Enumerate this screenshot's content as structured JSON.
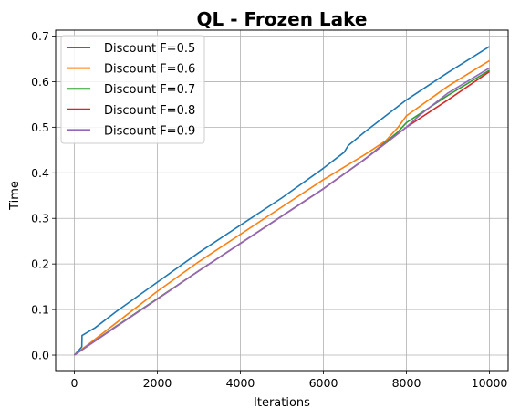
{
  "chart_data": {
    "type": "line",
    "title": "QL - Frozen Lake",
    "xlabel": "Iterations",
    "ylabel": "Time",
    "xlim": [
      -450,
      10450
    ],
    "ylim": [
      -0.034,
      0.713
    ],
    "xticks": [
      0,
      2000,
      4000,
      6000,
      8000,
      10000
    ],
    "yticks": [
      0.0,
      0.1,
      0.2,
      0.3,
      0.4,
      0.5,
      0.6,
      0.7
    ],
    "grid": true,
    "legend_position": "top-left",
    "series": [
      {
        "name": "Discount F=0.5",
        "color": "#1f77b4",
        "x": [
          0,
          180,
          185,
          500,
          1000,
          2000,
          3000,
          4000,
          5000,
          6000,
          6500,
          6600,
          7000,
          8000,
          9000,
          10000
        ],
        "y": [
          0.0,
          0.018,
          0.043,
          0.06,
          0.095,
          0.16,
          0.225,
          0.285,
          0.345,
          0.41,
          0.445,
          0.46,
          0.49,
          0.56,
          0.62,
          0.677
        ]
      },
      {
        "name": "Discount F=0.6",
        "color": "#ff7f0e",
        "x": [
          0,
          1000,
          2000,
          3000,
          4000,
          5000,
          6000,
          7000,
          7500,
          7800,
          8000,
          9000,
          10000
        ],
        "y": [
          0.0,
          0.07,
          0.14,
          0.205,
          0.265,
          0.325,
          0.385,
          0.44,
          0.47,
          0.5,
          0.525,
          0.59,
          0.646
        ]
      },
      {
        "name": "Discount F=0.7",
        "color": "#2ca02c",
        "x": [
          0,
          1000,
          2000,
          3000,
          4000,
          5000,
          6000,
          7000,
          7800,
          8000,
          9000,
          10000
        ],
        "y": [
          0.0,
          0.063,
          0.124,
          0.185,
          0.245,
          0.305,
          0.365,
          0.43,
          0.49,
          0.51,
          0.57,
          0.625
        ]
      },
      {
        "name": "Discount F=0.8",
        "color": "#d62728",
        "x": [
          0,
          1000,
          2000,
          3000,
          4000,
          5000,
          6000,
          7000,
          8000,
          9000,
          10000
        ],
        "y": [
          0.0,
          0.062,
          0.123,
          0.185,
          0.245,
          0.305,
          0.365,
          0.43,
          0.5,
          0.56,
          0.622
        ]
      },
      {
        "name": "Discount F=0.9",
        "color": "#9467bd",
        "x": [
          0,
          1000,
          2000,
          3000,
          4000,
          5000,
          6000,
          7000,
          8000,
          8300,
          9000,
          10000
        ],
        "y": [
          0.0,
          0.062,
          0.123,
          0.185,
          0.245,
          0.305,
          0.365,
          0.43,
          0.5,
          0.525,
          0.575,
          0.63
        ]
      }
    ]
  }
}
